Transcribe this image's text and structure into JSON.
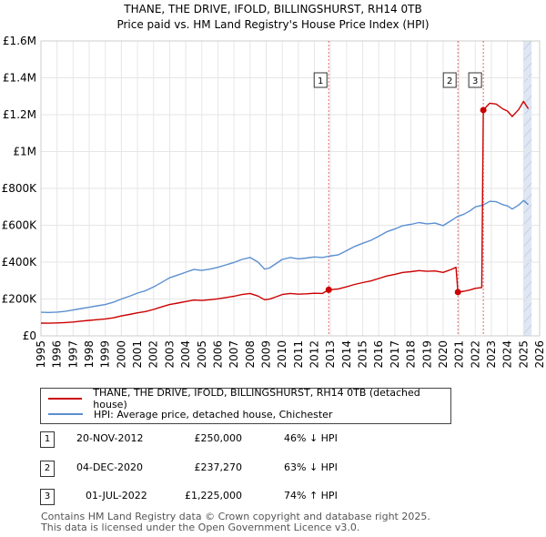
{
  "header": {
    "title": "THANE, THE DRIVE, IFOLD, BILLINGSHURST, RH14 0TB",
    "subtitle": "Price paid vs. HM Land Registry's House Price Index (HPI)"
  },
  "colors": {
    "property": "#cc0000",
    "hpi": "#5b8fd0",
    "shade": "#dfe7f4"
  },
  "chart_data": {
    "type": "line",
    "title": "THANE, THE DRIVE, IFOLD, BILLINGSHURST, RH14 0TB",
    "subtitle": "Price paid vs. HM Land Registry's House Price Index (HPI)",
    "xlim": [
      1995,
      2026
    ],
    "ylim": [
      0,
      1600000
    ],
    "x_ticks": [
      1995,
      1996,
      1997,
      1998,
      1999,
      2000,
      2001,
      2002,
      2003,
      2004,
      2005,
      2006,
      2007,
      2008,
      2009,
      2010,
      2011,
      2012,
      2013,
      2014,
      2015,
      2016,
      2017,
      2018,
      2019,
      2020,
      2021,
      2022,
      2023,
      2024,
      2025,
      2026
    ],
    "y_ticks": [
      {
        "value": 0,
        "label": "£0"
      },
      {
        "value": 200000,
        "label": "£200K"
      },
      {
        "value": 400000,
        "label": "£400K"
      },
      {
        "value": 600000,
        "label": "£600K"
      },
      {
        "value": 800000,
        "label": "£800K"
      },
      {
        "value": 1000000,
        "label": "£1M"
      },
      {
        "value": 1200000,
        "label": "£1.2M"
      },
      {
        "value": 1400000,
        "label": "£1.4M"
      },
      {
        "value": 1600000,
        "label": "£1.6M"
      }
    ],
    "grid": true,
    "shaded_region": {
      "from": 2025.0,
      "to": 2025.5
    },
    "series": [
      {
        "name": "HPI: Average price, detached house, Chichester",
        "color": "#5b8fd0",
        "points": [
          [
            1995.0,
            128000
          ],
          [
            1995.5,
            127000
          ],
          [
            1996.0,
            129000
          ],
          [
            1996.5,
            133000
          ],
          [
            1997.0,
            140000
          ],
          [
            1997.5,
            148000
          ],
          [
            1998.0,
            155000
          ],
          [
            1998.5,
            163000
          ],
          [
            1999.0,
            170000
          ],
          [
            1999.5,
            182000
          ],
          [
            2000.0,
            200000
          ],
          [
            2000.5,
            215000
          ],
          [
            2001.0,
            232000
          ],
          [
            2001.5,
            245000
          ],
          [
            2002.0,
            265000
          ],
          [
            2002.5,
            290000
          ],
          [
            2003.0,
            315000
          ],
          [
            2003.5,
            330000
          ],
          [
            2004.0,
            345000
          ],
          [
            2004.5,
            360000
          ],
          [
            2005.0,
            355000
          ],
          [
            2005.5,
            362000
          ],
          [
            2006.0,
            372000
          ],
          [
            2006.5,
            385000
          ],
          [
            2007.0,
            398000
          ],
          [
            2007.5,
            415000
          ],
          [
            2008.0,
            425000
          ],
          [
            2008.5,
            400000
          ],
          [
            2008.9,
            362000
          ],
          [
            2009.2,
            368000
          ],
          [
            2009.5,
            385000
          ],
          [
            2010.0,
            415000
          ],
          [
            2010.5,
            425000
          ],
          [
            2011.0,
            418000
          ],
          [
            2011.5,
            422000
          ],
          [
            2012.0,
            428000
          ],
          [
            2012.5,
            425000
          ],
          [
            2012.9,
            432000
          ],
          [
            2013.5,
            440000
          ],
          [
            2014.0,
            462000
          ],
          [
            2014.5,
            485000
          ],
          [
            2015.0,
            502000
          ],
          [
            2015.5,
            518000
          ],
          [
            2016.0,
            540000
          ],
          [
            2016.5,
            565000
          ],
          [
            2017.0,
            580000
          ],
          [
            2017.5,
            598000
          ],
          [
            2018.0,
            605000
          ],
          [
            2018.5,
            615000
          ],
          [
            2019.0,
            608000
          ],
          [
            2019.5,
            612000
          ],
          [
            2020.0,
            598000
          ],
          [
            2020.5,
            625000
          ],
          [
            2020.9,
            648000
          ],
          [
            2021.3,
            660000
          ],
          [
            2021.7,
            680000
          ],
          [
            2022.0,
            700000
          ],
          [
            2022.5,
            710000
          ],
          [
            2022.9,
            730000
          ],
          [
            2023.3,
            728000
          ],
          [
            2023.7,
            712000
          ],
          [
            2024.0,
            705000
          ],
          [
            2024.3,
            688000
          ],
          [
            2024.7,
            710000
          ],
          [
            2025.0,
            735000
          ],
          [
            2025.3,
            712000
          ]
        ]
      },
      {
        "name": "THANE, THE DRIVE, IFOLD, BILLINGSHURST, RH14 0TB (detached house)",
        "color": "#cc0000",
        "points": [
          [
            1995.0,
            69000
          ],
          [
            1995.5,
            68500
          ],
          [
            1996.0,
            70000
          ],
          [
            1996.5,
            72000
          ],
          [
            1997.0,
            75000
          ],
          [
            1997.5,
            80000
          ],
          [
            1998.0,
            84000
          ],
          [
            1998.5,
            88000
          ],
          [
            1999.0,
            92000
          ],
          [
            1999.5,
            98000
          ],
          [
            2000.0,
            108000
          ],
          [
            2000.5,
            116000
          ],
          [
            2001.0,
            125000
          ],
          [
            2001.5,
            132000
          ],
          [
            2002.0,
            143000
          ],
          [
            2002.5,
            157000
          ],
          [
            2003.0,
            170000
          ],
          [
            2003.5,
            178000
          ],
          [
            2004.0,
            186000
          ],
          [
            2004.5,
            194000
          ],
          [
            2005.0,
            192000
          ],
          [
            2005.5,
            196000
          ],
          [
            2006.0,
            201000
          ],
          [
            2006.5,
            208000
          ],
          [
            2007.0,
            215000
          ],
          [
            2007.5,
            224000
          ],
          [
            2008.0,
            230000
          ],
          [
            2008.5,
            216000
          ],
          [
            2008.9,
            196000
          ],
          [
            2009.2,
            199000
          ],
          [
            2009.5,
            208000
          ],
          [
            2010.0,
            224000
          ],
          [
            2010.5,
            230000
          ],
          [
            2011.0,
            226000
          ],
          [
            2011.5,
            228000
          ],
          [
            2012.0,
            231000
          ],
          [
            2012.5,
            230000
          ],
          [
            2012.89,
            250000
          ],
          [
            2013.5,
            255000
          ],
          [
            2014.0,
            266000
          ],
          [
            2014.5,
            279000
          ],
          [
            2015.0,
            289000
          ],
          [
            2015.5,
            298000
          ],
          [
            2016.0,
            311000
          ],
          [
            2016.5,
            325000
          ],
          [
            2017.0,
            334000
          ],
          [
            2017.5,
            344000
          ],
          [
            2018.0,
            348000
          ],
          [
            2018.5,
            354000
          ],
          [
            2019.0,
            350000
          ],
          [
            2019.5,
            352000
          ],
          [
            2020.0,
            344000
          ],
          [
            2020.5,
            360000
          ],
          [
            2020.8,
            372000
          ],
          [
            2020.92,
            237270
          ],
          [
            2021.3,
            242000
          ],
          [
            2021.7,
            250000
          ],
          [
            2022.0,
            258000
          ],
          [
            2022.4,
            262000
          ],
          [
            2022.5,
            1225000
          ],
          [
            2022.9,
            1262000
          ],
          [
            2023.3,
            1258000
          ],
          [
            2023.7,
            1232000
          ],
          [
            2024.0,
            1220000
          ],
          [
            2024.3,
            1190000
          ],
          [
            2024.7,
            1228000
          ],
          [
            2025.0,
            1272000
          ],
          [
            2025.3,
            1232000
          ]
        ]
      }
    ],
    "sales": [
      {
        "marker": "1",
        "x": 2012.89,
        "price": 250000
      },
      {
        "marker": "2",
        "x": 2020.92,
        "price": 237270
      },
      {
        "marker": "3",
        "x": 2022.5,
        "price": 1225000
      }
    ]
  },
  "legend": {
    "property_label": "THANE, THE DRIVE, IFOLD, BILLINGSHURST, RH14 0TB (detached house)",
    "hpi_label": "HPI: Average price, detached house, Chichester"
  },
  "transactions": [
    {
      "marker": "1",
      "date": "20-NOV-2012",
      "price": "£250,000",
      "hpi": "46% ↓ HPI"
    },
    {
      "marker": "2",
      "date": "04-DEC-2020",
      "price": "£237,270",
      "hpi": "63% ↓ HPI"
    },
    {
      "marker": "3",
      "date": "01-JUL-2022",
      "price": "£1,225,000",
      "hpi": "74% ↑ HPI"
    }
  ],
  "footer": {
    "line1": "Contains HM Land Registry data © Crown copyright and database right 2025.",
    "line2": "This data is licensed under the Open Government Licence v3.0."
  }
}
